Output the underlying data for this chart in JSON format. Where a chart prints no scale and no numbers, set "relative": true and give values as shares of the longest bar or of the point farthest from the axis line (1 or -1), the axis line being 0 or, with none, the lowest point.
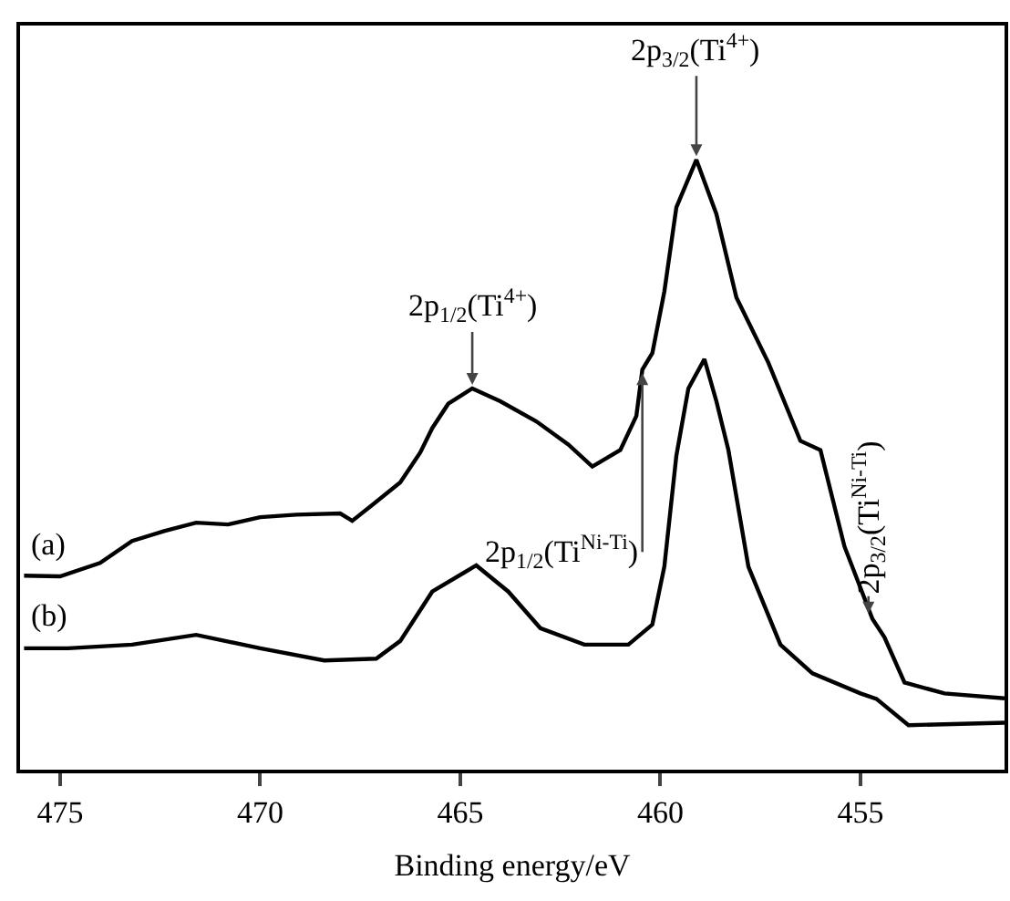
{
  "chart_data": {
    "type": "line",
    "relative": true,
    "xlabel": "Binding energy/eV",
    "xlim": [
      476,
      451.4
    ],
    "xticks": [
      475,
      470,
      465,
      460,
      455
    ],
    "grid": false,
    "legend": false,
    "marker": "none",
    "line_style": "solid",
    "series": [
      {
        "name": "(a)",
        "color": "#000000",
        "x": [
          475.9,
          475.0,
          474.0,
          473.2,
          472.4,
          471.6,
          470.8,
          470.0,
          469.1,
          468.0,
          467.7,
          467.2,
          466.5,
          466.0,
          465.7,
          465.3,
          464.7,
          464.0,
          463.1,
          462.3,
          461.7,
          461.0,
          460.6,
          460.45,
          460.2,
          459.9,
          459.6,
          459.1,
          458.6,
          458.1,
          457.3,
          456.5,
          456.0,
          455.4,
          454.7,
          454.4,
          453.9,
          452.9,
          451.4
        ],
        "values": [
          0.318,
          0.317,
          0.339,
          0.375,
          0.391,
          0.405,
          0.402,
          0.414,
          0.418,
          0.42,
          0.408,
          0.434,
          0.471,
          0.52,
          0.56,
          0.6,
          0.625,
          0.604,
          0.571,
          0.533,
          0.497,
          0.524,
          0.58,
          0.656,
          0.683,
          0.784,
          0.922,
          1.0,
          0.911,
          0.774,
          0.667,
          0.539,
          0.524,
          0.366,
          0.247,
          0.217,
          0.143,
          0.125,
          0.117
        ]
      },
      {
        "name": "(b)",
        "color": "#000000",
        "x": [
          475.9,
          474.8,
          473.2,
          471.6,
          470.0,
          468.4,
          467.1,
          466.5,
          465.7,
          464.6,
          463.8,
          463.0,
          461.9,
          460.8,
          460.2,
          459.9,
          459.6,
          459.3,
          458.9,
          458.6,
          458.3,
          457.8,
          457.0,
          456.2,
          455.0,
          454.6,
          453.8,
          451.4
        ],
        "values": [
          0.199,
          0.199,
          0.205,
          0.221,
          0.199,
          0.179,
          0.182,
          0.211,
          0.292,
          0.335,
          0.292,
          0.232,
          0.205,
          0.205,
          0.238,
          0.333,
          0.515,
          0.625,
          0.673,
          0.604,
          0.524,
          0.333,
          0.205,
          0.158,
          0.125,
          0.116,
          0.073,
          0.077
        ]
      }
    ],
    "annotations": [
      {
        "text": "2p$_{3/2}$(Ti$^{4+}$)",
        "x": 459.1,
        "y": 1.0
      },
      {
        "text": "2p$_{1/2}$(Ti$^{4+}$)",
        "x": 464.7,
        "y": 0.625
      },
      {
        "text": "2p$_{1/2}$(Ti$^{Ni-Ti}$)",
        "x": 460.45,
        "y": 0.656
      },
      {
        "text": "2p$_{3/2}$(Ti$^{Ni-Ti}$)",
        "x": 454.8,
        "y": 0.25
      }
    ]
  }
}
